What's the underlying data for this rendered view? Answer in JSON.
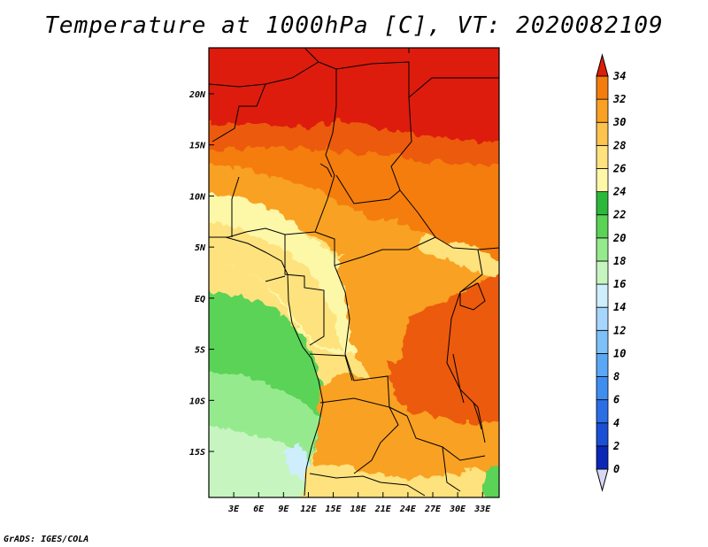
{
  "title": "Temperature at 1000hPa [C], VT: 2020082109",
  "credit": "GrADS: IGES/COLA",
  "map": {
    "lat_ticks": [
      {
        "lat": 20,
        "label": "20N"
      },
      {
        "lat": 15,
        "label": "15N"
      },
      {
        "lat": 10,
        "label": "10N"
      },
      {
        "lat": 5,
        "label": "5N"
      },
      {
        "lat": 0,
        "label": "EQ"
      },
      {
        "lat": -5,
        "label": "5S"
      },
      {
        "lat": -10,
        "label": "10S"
      },
      {
        "lat": -15,
        "label": "15S"
      }
    ],
    "lon_ticks": [
      {
        "lon": 3,
        "label": "3E"
      },
      {
        "lon": 6,
        "label": "6E"
      },
      {
        "lon": 9,
        "label": "9E"
      },
      {
        "lon": 12,
        "label": "12E"
      },
      {
        "lon": 15,
        "label": "15E"
      },
      {
        "lon": 18,
        "label": "18E"
      },
      {
        "lon": 21,
        "label": "21E"
      },
      {
        "lon": 24,
        "label": "24E"
      },
      {
        "lon": 27,
        "label": "27E"
      },
      {
        "lon": 30,
        "label": "30E"
      },
      {
        "lon": 33,
        "label": "33E"
      }
    ],
    "lon_range": [
      0,
      35
    ],
    "lat_range": [
      -19.5,
      24.5
    ]
  },
  "colorbar": {
    "levels": [
      0,
      2,
      4,
      6,
      8,
      10,
      12,
      14,
      16,
      18,
      20,
      22,
      24,
      26,
      28,
      30,
      32,
      34
    ],
    "colors": [
      "#0a0a70",
      "#0b27b8",
      "#1a4fd6",
      "#2a6fe6",
      "#3e8ef0",
      "#5aa8f5",
      "#7fc0f8",
      "#a6d6fb",
      "#cdeefa",
      "#c6f5c0",
      "#96ea8e",
      "#5ad357",
      "#2cb83a",
      "#fdf7a8",
      "#fde27e",
      "#fcc34e",
      "#f9a123",
      "#f47d0e",
      "#ec5a08",
      "#dd1f07"
    ],
    "labels": [
      "0",
      "2",
      "4",
      "6",
      "8",
      "10",
      "12",
      "14",
      "16",
      "18",
      "20",
      "22",
      "24",
      "26",
      "28",
      "30",
      "32",
      "34"
    ]
  }
}
